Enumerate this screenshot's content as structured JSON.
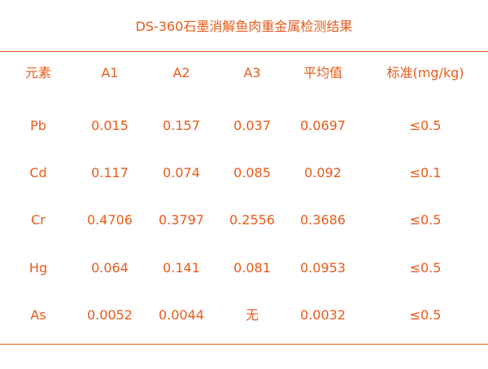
{
  "title": "DS-360石墨消解鱼肉重金属检测结果",
  "colors": {
    "accent": "#ea5a1a"
  },
  "table": {
    "headers": [
      "元素",
      "A1",
      "A2",
      "A3",
      "平均值",
      "标准(mg/kg)"
    ],
    "rows": [
      [
        "Pb",
        "0.015",
        "0.157",
        "0.037",
        "0.0697",
        "≤0.5"
      ],
      [
        "Cd",
        "0.117",
        "0.074",
        "0.085",
        "0.092",
        "≤0.1"
      ],
      [
        "Cr",
        "0.4706",
        "0.3797",
        "0.2556",
        "0.3686",
        "≤0.5"
      ],
      [
        "Hg",
        "0.064",
        "0.141",
        "0.081",
        "0.0953",
        "≤0.5"
      ],
      [
        "As",
        "0.0052",
        "0.0044",
        "无",
        "0.0032",
        "≤0.5"
      ]
    ]
  }
}
